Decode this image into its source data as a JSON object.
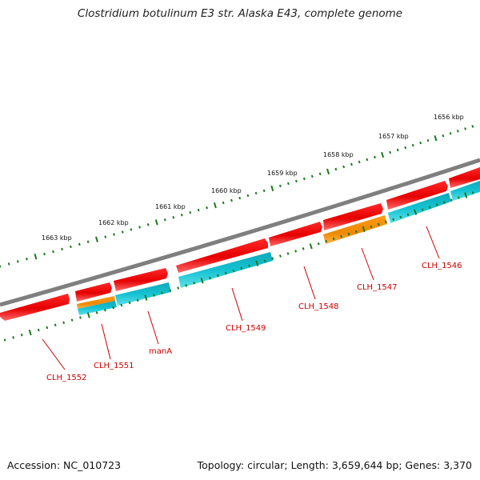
{
  "title": "Clostridium botulinum E3 str. Alaska E43, complete genome",
  "footer": {
    "accession": "Accession: NC_010723",
    "summary": "Topology: circular; Length: 3,659,644 bp; Genes: 3,370"
  },
  "colors": {
    "backbone": "#7a7a7a",
    "cds": "#ee1111",
    "orange": "#f08c00",
    "cyan": "#11bbcc",
    "tick": "#1a7a1a",
    "label": "#cc0000"
  },
  "scale_labels": [
    "1663 kbp",
    "1662 kbp",
    "1661 kbp",
    "1660 kbp",
    "1659 kbp",
    "1658 kbp",
    "1657 kbp",
    "1656 kbp"
  ],
  "gene_labels": [
    "CLH_1552",
    "CLH_1551",
    "manA",
    "CLH_1549",
    "CLH_1548",
    "CLH_1547",
    "CLH_1546"
  ]
}
